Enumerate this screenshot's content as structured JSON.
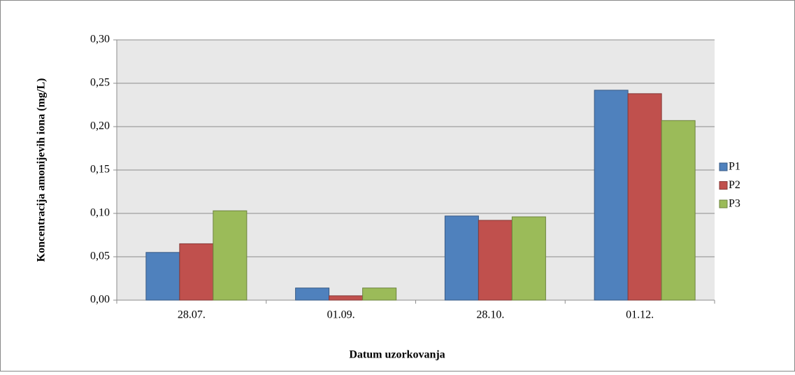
{
  "chart_data": {
    "type": "bar",
    "categories": [
      "28.07.",
      "01.09.",
      "28.10.",
      "01.12."
    ],
    "series": [
      {
        "name": "P1",
        "color": "#4f81bd",
        "values": [
          0.055,
          0.014,
          0.097,
          0.242
        ]
      },
      {
        "name": "P2",
        "color": "#c0504d",
        "values": [
          0.065,
          0.005,
          0.092,
          0.238
        ]
      },
      {
        "name": "P3",
        "color": "#9bbb59",
        "values": [
          0.103,
          0.014,
          0.096,
          0.207
        ]
      }
    ],
    "y_label": "Koncentracija amonijevih iona (mg/L)",
    "x_label": "Datum uzorkovanja",
    "ylim": [
      0,
      0.3
    ],
    "yticks": [
      {
        "value": 0,
        "label": "0,00"
      },
      {
        "value": 0.05,
        "label": "0,05"
      },
      {
        "value": 0.1,
        "label": "0,10"
      },
      {
        "value": 0.15,
        "label": "0,15"
      },
      {
        "value": 0.2,
        "label": "0,20"
      },
      {
        "value": 0.25,
        "label": "0,25"
      },
      {
        "value": 0.3,
        "label": "0,30"
      }
    ],
    "grid": true,
    "legend": "right"
  }
}
